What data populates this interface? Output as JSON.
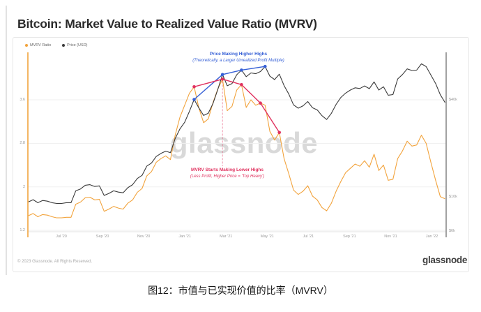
{
  "page": {
    "title": "Bitcoin: Market Value to Realized Value Ratio (MVRV)",
    "caption": "图12：市值与已实现价值的比率（MVRV）"
  },
  "card": {
    "legend": [
      {
        "label": "MVRV Ratio",
        "color": "#F2A33C"
      },
      {
        "label": "Price (USD)",
        "color": "#3A3A3A"
      }
    ],
    "watermark": "glassnode",
    "footer": {
      "copyright": "© 2023 Glassnode. All Rights Reserved.",
      "brand": "glassnode"
    }
  },
  "chart_data": {
    "type": "line",
    "title": "Bitcoin: Market Value to Realized Value Ratio (MVRV)",
    "x_axis": {
      "ticks": [
        {
          "label": "Jul '20",
          "month": 0
        },
        {
          "label": "Sep '20",
          "month": 2
        },
        {
          "label": "Nov '20",
          "month": 4
        },
        {
          "label": "Jan '21",
          "month": 6
        },
        {
          "label": "Mar '21",
          "month": 8
        },
        {
          "label": "May '21",
          "month": 10
        },
        {
          "label": "Jul '21",
          "month": 12
        },
        {
          "label": "Sep '21",
          "month": 14
        },
        {
          "label": "Nov '21",
          "month": 16
        },
        {
          "label": "Jan '22",
          "month": 18
        }
      ],
      "range_months": [
        -1.6,
        18.7
      ]
    },
    "y_left": {
      "name": "MVRV Ratio",
      "scale": "linear",
      "ticks": [
        {
          "label": "3.6",
          "value": 3.6
        },
        {
          "label": "2.8",
          "value": 2.8
        },
        {
          "label": "2",
          "value": 2
        },
        {
          "label": "1.2",
          "value": 1.2
        }
      ]
    },
    "y_right": {
      "name": "Price (USD)",
      "scale": "log",
      "ticks": [
        {
          "label": "$40k",
          "value": 40
        },
        {
          "label": "$10k",
          "value": 10
        },
        {
          "label": "$6k",
          "value": 6
        }
      ]
    },
    "series_x": {
      "start": -1.6,
      "step": 0.23,
      "unit": "months since Jul 2020"
    },
    "series": [
      {
        "name": "MVRV Ratio",
        "axis": "left",
        "color": "#F2A33C",
        "values": [
          1.47,
          1.51,
          1.45,
          1.49,
          1.48,
          1.45,
          1.43,
          1.43,
          1.44,
          1.44,
          1.68,
          1.72,
          1.8,
          1.81,
          1.76,
          1.77,
          1.55,
          1.59,
          1.64,
          1.61,
          1.59,
          1.7,
          1.76,
          1.9,
          1.97,
          2.2,
          2.28,
          2.45,
          2.52,
          2.57,
          2.5,
          2.95,
          3.28,
          3.5,
          3.72,
          3.84,
          3.45,
          3.18,
          3.25,
          3.55,
          3.8,
          3.98,
          3.4,
          3.48,
          3.78,
          3.88,
          3.46,
          3.6,
          3.5,
          3.54,
          3.5,
          3.02,
          2.86,
          3.0,
          2.52,
          2.24,
          1.94,
          1.86,
          1.92,
          2.02,
          1.83,
          1.76,
          1.62,
          1.56,
          1.7,
          1.92,
          2.1,
          2.26,
          2.34,
          2.42,
          2.38,
          2.48,
          2.36,
          2.6,
          2.3,
          2.4,
          2.12,
          2.14,
          2.52,
          2.66,
          2.84,
          2.75,
          2.77,
          2.95,
          2.8,
          2.45,
          2.12,
          1.82,
          1.78
        ]
      },
      {
        "name": "Price (USD)",
        "axis": "right",
        "color": "#3A3A3A",
        "values": [
          9.3,
          9.6,
          9.2,
          9.5,
          9.4,
          9.2,
          9.1,
          9.1,
          9.2,
          9.2,
          10.9,
          11.2,
          11.8,
          11.9,
          11.6,
          11.7,
          10.2,
          10.5,
          10.9,
          10.7,
          10.6,
          11.4,
          11.9,
          13.0,
          13.6,
          15.5,
          16.2,
          17.8,
          18.6,
          19.2,
          18.8,
          23.0,
          26.4,
          29.0,
          33.9,
          40.2,
          35.6,
          32.0,
          33.0,
          38.0,
          46.3,
          57.4,
          48.9,
          50.4,
          57.2,
          61.2,
          55.7,
          58.7,
          58.1,
          59.9,
          64.4,
          56.1,
          53.4,
          57.7,
          49.0,
          43.4,
          37.2,
          35.5,
          36.7,
          39.0,
          35.7,
          34.6,
          31.9,
          30.2,
          33.0,
          37.5,
          41.4,
          44.0,
          46.0,
          47.5,
          47.0,
          48.8,
          46.9,
          51.7,
          46.0,
          48.2,
          42.7,
          43.1,
          53.9,
          57.4,
          62.2,
          60.8,
          61.2,
          66.9,
          64.3,
          57.0,
          50.5,
          43.0,
          38.5
        ]
      }
    ],
    "annotations": {
      "blue": {
        "title": "Price Making Higher Highs",
        "subtitle": "(Theoretically, a Larger Unrealized Profit Multiple)",
        "color": "#3660D6",
        "points": [
          [
            6.45,
            40.2
          ],
          [
            7.83,
            57.4
          ],
          [
            8.75,
            61.2
          ],
          [
            9.9,
            64.4
          ]
        ]
      },
      "red": {
        "title": "MVRV Starts Making Lower Highs",
        "subtitle": "(Less Profit, Higher Price = 'Top Heavy')",
        "color": "#E0325F",
        "points": [
          [
            6.45,
            3.84
          ],
          [
            7.83,
            3.98
          ],
          [
            8.75,
            3.88
          ],
          [
            9.67,
            3.54
          ],
          [
            10.59,
            3.0
          ]
        ]
      },
      "dashed_line_month": 7.83
    }
  }
}
